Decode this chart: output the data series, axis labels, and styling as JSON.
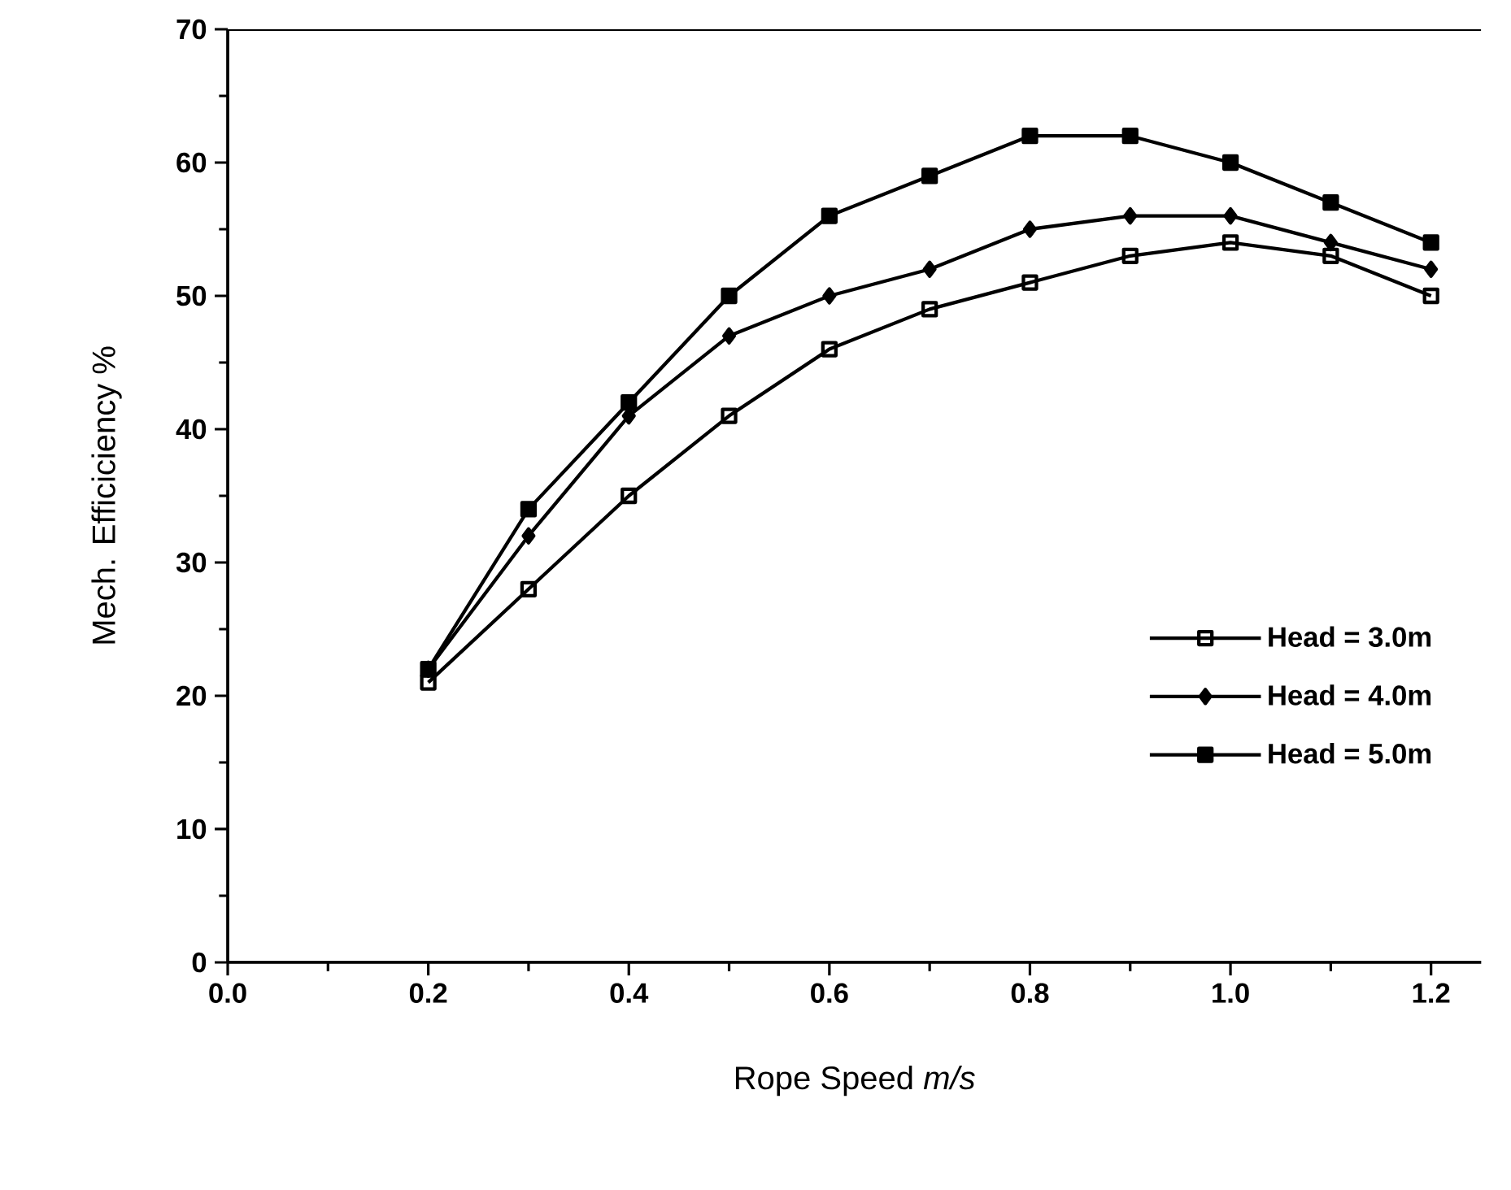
{
  "chart_data": {
    "type": "line",
    "xlabel": "Rope Speed  *m/s*",
    "ylabel": "Mech. Efficiciency  %",
    "x": [
      0.2,
      0.3,
      0.4,
      0.5,
      0.6,
      0.7,
      0.8,
      0.9,
      1.0,
      1.1,
      1.2
    ],
    "series": [
      {
        "name": "Head = 3.0m",
        "color": "#000000",
        "marker": "square",
        "values": [
          21,
          28,
          35,
          41,
          46,
          49,
          51,
          53,
          54,
          53,
          50
        ]
      },
      {
        "name": "Head = 4.0m",
        "color": "#000000",
        "marker": "diamond",
        "values": [
          22,
          32,
          41,
          47,
          50,
          52,
          55,
          56,
          56,
          54,
          52
        ]
      },
      {
        "name": "Head = 5.0m",
        "color": "#000000",
        "marker": "square",
        "values": [
          22,
          34,
          42,
          50,
          56,
          59,
          62,
          62,
          60,
          57,
          54
        ]
      }
    ],
    "xlim": [
      0,
      1.25
    ],
    "ylim": [
      0,
      70
    ],
    "xticks": [
      {
        "value": 0,
        "label": "0.0"
      },
      {
        "value": 0.2,
        "label": "0.2"
      },
      {
        "value": 0.4,
        "label": "0.4"
      },
      {
        "value": 0.6,
        "label": "0.6"
      },
      {
        "value": 0.8,
        "label": "0.8"
      },
      {
        "value": 1.0,
        "label": "1.0"
      },
      {
        "value": 1.2,
        "label": "1.2"
      }
    ],
    "yticks": [
      0,
      10,
      20,
      30,
      40,
      50,
      60,
      70
    ],
    "grid": false,
    "legend": "bottom right",
    "line_style": "solid"
  }
}
